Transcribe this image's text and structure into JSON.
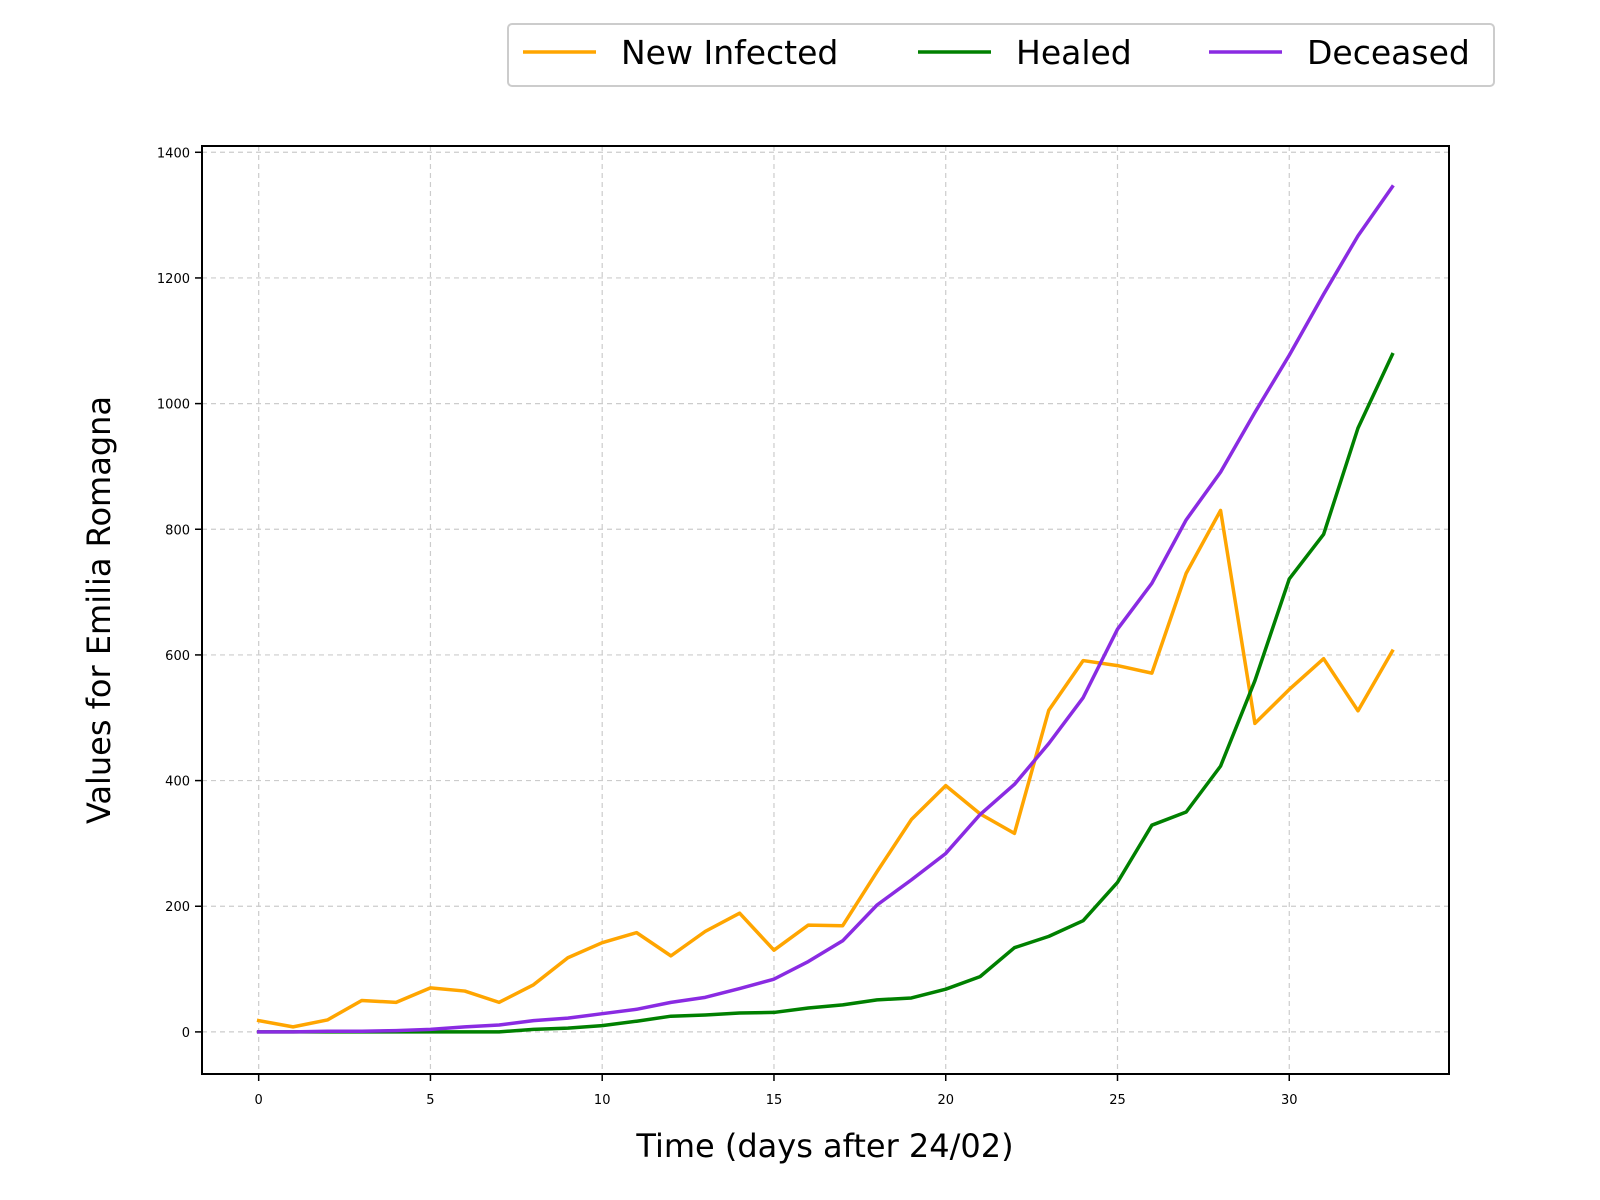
{
  "chart_data": {
    "type": "line",
    "xlabel": "Time (days after 24/02)",
    "ylabel": "Values for Emilia Romagna",
    "x": [
      0,
      1,
      2,
      3,
      4,
      5,
      6,
      7,
      8,
      9,
      10,
      11,
      12,
      13,
      14,
      15,
      16,
      17,
      18,
      19,
      20,
      21,
      22,
      23,
      24,
      25,
      26,
      27,
      28,
      29,
      30,
      31,
      32,
      33
    ],
    "xlim": [
      -1.65,
      34.65
    ],
    "ylim": [
      -67,
      1410
    ],
    "xticks": [
      0,
      5,
      10,
      15,
      20,
      25,
      30
    ],
    "yticks": [
      0,
      200,
      400,
      600,
      800,
      1000,
      1200,
      1400
    ],
    "grid": true,
    "legend_position": "top-right",
    "series": [
      {
        "name": "New Infected",
        "color": "#FFA500",
        "values": [
          18,
          8,
          19,
          50,
          47,
          70,
          65,
          47,
          75,
          118,
          142,
          158,
          121,
          160,
          189,
          130,
          170,
          169,
          255,
          338,
          392,
          347,
          316,
          512,
          591,
          583,
          571,
          730,
          830,
          491,
          545,
          594,
          511,
          606
        ]
      },
      {
        "name": "Healed",
        "color": "#008000",
        "values": [
          0,
          0,
          0,
          0,
          0,
          0,
          0,
          0,
          4,
          6,
          10,
          17,
          25,
          27,
          30,
          31,
          38,
          43,
          51,
          54,
          68,
          88,
          134,
          152,
          177,
          238,
          329,
          350,
          423,
          559,
          721,
          792,
          961,
          1078
        ]
      },
      {
        "name": "Deceased",
        "color": "#8A2BE2",
        "values": [
          0,
          0,
          1,
          1,
          2,
          4,
          8,
          11,
          18,
          22,
          29,
          36,
          47,
          55,
          69,
          84,
          112,
          145,
          202,
          242,
          284,
          346,
          394,
          459,
          532,
          641,
          714,
          815,
          891,
          986,
          1077,
          1174,
          1267,
          1345
        ]
      }
    ]
  }
}
